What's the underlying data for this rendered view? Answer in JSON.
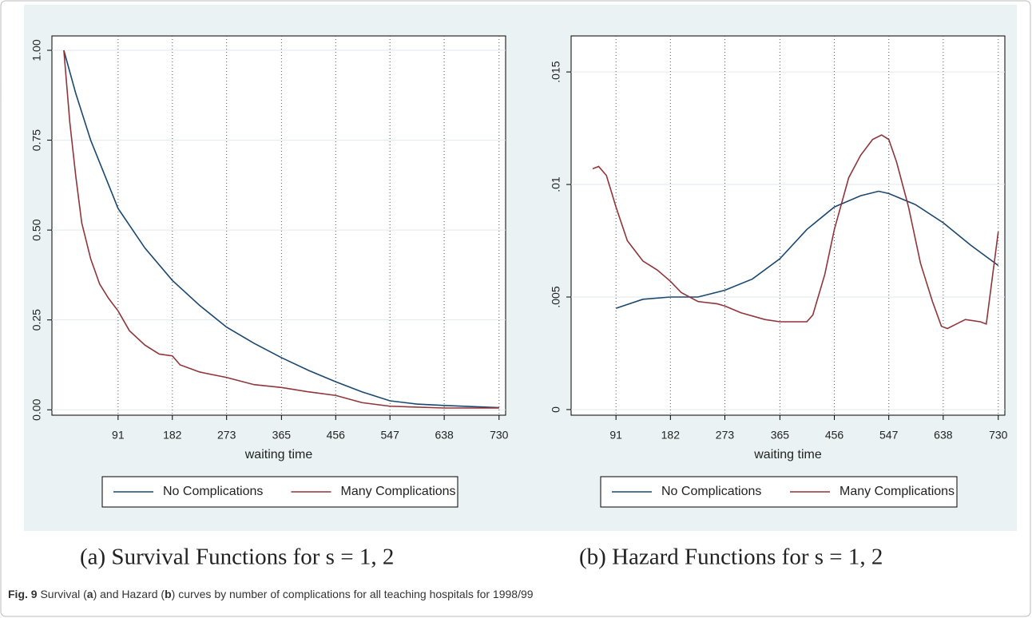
{
  "chart_data": [
    {
      "type": "line",
      "caption": "(a) Survival Functions for s = 1, 2",
      "xlabel": "waiting time",
      "xlim": [
        -20,
        741
      ],
      "ylim": [
        -0.015,
        1.04
      ],
      "xticks": [
        91,
        182,
        273,
        365,
        456,
        547,
        638,
        730
      ],
      "yticks": [
        {
          "value": 0,
          "label": "0.00"
        },
        {
          "value": 0.25,
          "label": "0.25"
        },
        {
          "value": 0.5,
          "label": "0.50"
        },
        {
          "value": 0.75,
          "label": "0.75"
        },
        {
          "value": 1,
          "label": "1.00"
        }
      ],
      "grid": true,
      "series": [
        {
          "name": "No Complications",
          "color": "#1a476f",
          "x": [
            0,
            20,
            45,
            91,
            136,
            182,
            228,
            273,
            319,
            365,
            410,
            456,
            500,
            547,
            592,
            638,
            684,
            730
          ],
          "values": [
            1.0,
            0.88,
            0.75,
            0.56,
            0.45,
            0.36,
            0.29,
            0.23,
            0.185,
            0.145,
            0.11,
            0.078,
            0.05,
            0.025,
            0.016,
            0.012,
            0.009,
            0.006
          ]
        },
        {
          "name": "Many Complications",
          "color": "#90353b",
          "x": [
            0,
            10,
            20,
            30,
            45,
            60,
            75,
            91,
            110,
            136,
            160,
            182,
            195,
            228,
            273,
            319,
            365,
            410,
            456,
            500,
            547,
            638,
            730
          ],
          "values": [
            1.0,
            0.8,
            0.65,
            0.52,
            0.42,
            0.35,
            0.31,
            0.275,
            0.22,
            0.18,
            0.155,
            0.15,
            0.125,
            0.105,
            0.09,
            0.07,
            0.062,
            0.05,
            0.04,
            0.02,
            0.01,
            0.005,
            0.005
          ]
        }
      ]
    },
    {
      "type": "line",
      "caption": "(b) Hazard Functions for s = 1, 2",
      "xlabel": "waiting time",
      "xlim": [
        16,
        741
      ],
      "ylim": [
        -0.00025,
        0.0166
      ],
      "xticks": [
        91,
        182,
        273,
        365,
        456,
        547,
        638,
        730
      ],
      "yticks": [
        0,
        {
          "value": 0.005,
          "label": ".005"
        },
        {
          "value": 0.01,
          "label": ".01"
        },
        {
          "value": 0.015,
          "label": ".015"
        }
      ],
      "grid": true,
      "series": [
        {
          "name": "No Complications",
          "color": "#1a476f",
          "x": [
            91,
            136,
            182,
            228,
            273,
            319,
            365,
            410,
            456,
            500,
            530,
            547,
            592,
            638,
            684,
            730
          ],
          "values": [
            0.0045,
            0.0049,
            0.005,
            0.005,
            0.0053,
            0.0058,
            0.0067,
            0.008,
            0.009,
            0.0095,
            0.0097,
            0.0096,
            0.0091,
            0.0083,
            0.0073,
            0.0064
          ]
        },
        {
          "name": "Many Complications",
          "color": "#90353b",
          "x": [
            52,
            62,
            75,
            91,
            110,
            136,
            160,
            182,
            200,
            228,
            260,
            273,
            300,
            340,
            365,
            390,
            410,
            420,
            440,
            456,
            480,
            500,
            520,
            535,
            547,
            560,
            580,
            600,
            620,
            635,
            645,
            660,
            675,
            700,
            710,
            730
          ],
          "values": [
            0.0107,
            0.0108,
            0.0104,
            0.009,
            0.0075,
            0.0066,
            0.0062,
            0.0057,
            0.0052,
            0.0048,
            0.0047,
            0.0046,
            0.0043,
            0.004,
            0.0039,
            0.0039,
            0.0039,
            0.0042,
            0.006,
            0.008,
            0.0103,
            0.0113,
            0.012,
            0.0122,
            0.012,
            0.011,
            0.009,
            0.0065,
            0.0048,
            0.0037,
            0.0036,
            0.0038,
            0.004,
            0.0039,
            0.0038,
            0.0079
          ]
        }
      ]
    }
  ],
  "figure_caption": [
    {
      "text": "Fig. 9",
      "bold": true
    },
    {
      "text": " Survival ("
    },
    {
      "text": "a",
      "bold": true
    },
    {
      "text": ") and Hazard ("
    },
    {
      "text": "b",
      "bold": true
    },
    {
      "text": ") curves by number of complications for all teaching hospitals for 1998/99"
    }
  ]
}
